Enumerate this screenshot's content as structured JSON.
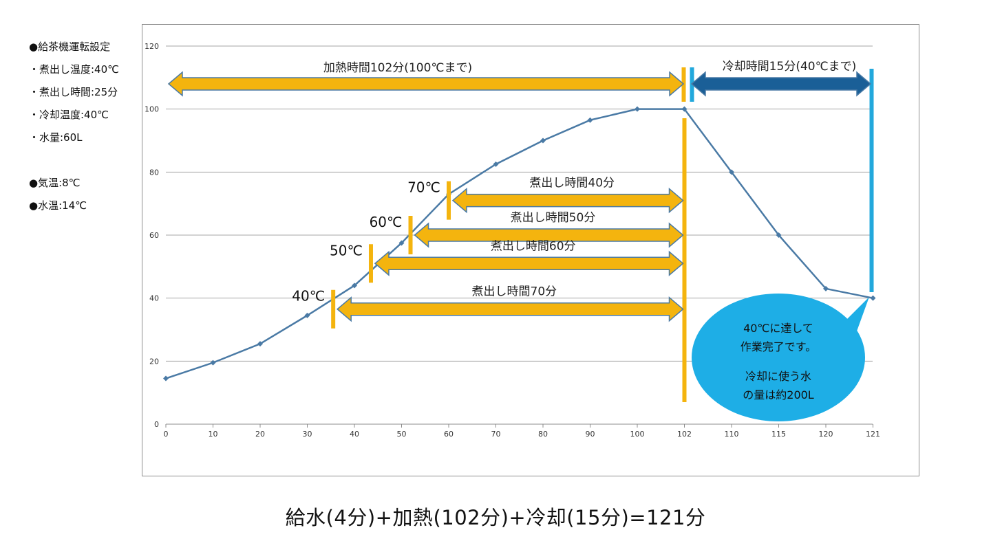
{
  "settings": {
    "heading": "●給茶機運転設定",
    "items": [
      "・煮出し温度:40℃",
      "・煮出し時間:25分",
      "・冷却温度:40℃",
      "・水量:60L"
    ],
    "env": [
      "●気温:8℃",
      "●水温:14℃"
    ]
  },
  "formula": "給水(4分)+加熱(102分)+冷却(15分)=121分",
  "colors": {
    "line": "#4a7aa5",
    "heat": "#f4b40e",
    "cool_arrow": "#1a5f97",
    "cool_line": "#22a8dc",
    "bubble": "#1eaee6"
  },
  "chart_data": {
    "type": "line",
    "x_ticks": [
      "0",
      "10",
      "20",
      "30",
      "40",
      "50",
      "60",
      "70",
      "80",
      "90",
      "100",
      "102",
      "110",
      "115",
      "120",
      "121"
    ],
    "y_ticks": [
      "0",
      "20",
      "40",
      "60",
      "80",
      "100",
      "120"
    ],
    "ylim": [
      0,
      120
    ],
    "values": [
      14.5,
      19.5,
      25.5,
      34.5,
      44,
      57.5,
      73,
      82.5,
      90,
      96.5,
      100,
      100,
      80,
      60,
      43,
      40
    ],
    "annotations": {
      "heating": "加熱時間102分(100℃まで)",
      "cooling": "冷却時間15分(40℃まで)",
      "brews": [
        {
          "temp": "70℃",
          "label": "煮出し時間40分",
          "start": 6.0,
          "y": 71
        },
        {
          "temp": "60℃",
          "label": "煮出し時間50分",
          "start": 5.19,
          "y": 60
        },
        {
          "temp": "50℃",
          "label": "煮出し時間60分",
          "start": 4.35,
          "y": 51
        },
        {
          "temp": "40℃",
          "label": "煮出し時間70分",
          "start": 3.55,
          "y": 36.5
        }
      ],
      "bubble": [
        "40℃に達して",
        "作業完了です。",
        "冷却に使う水",
        "の量は約200L"
      ]
    }
  }
}
